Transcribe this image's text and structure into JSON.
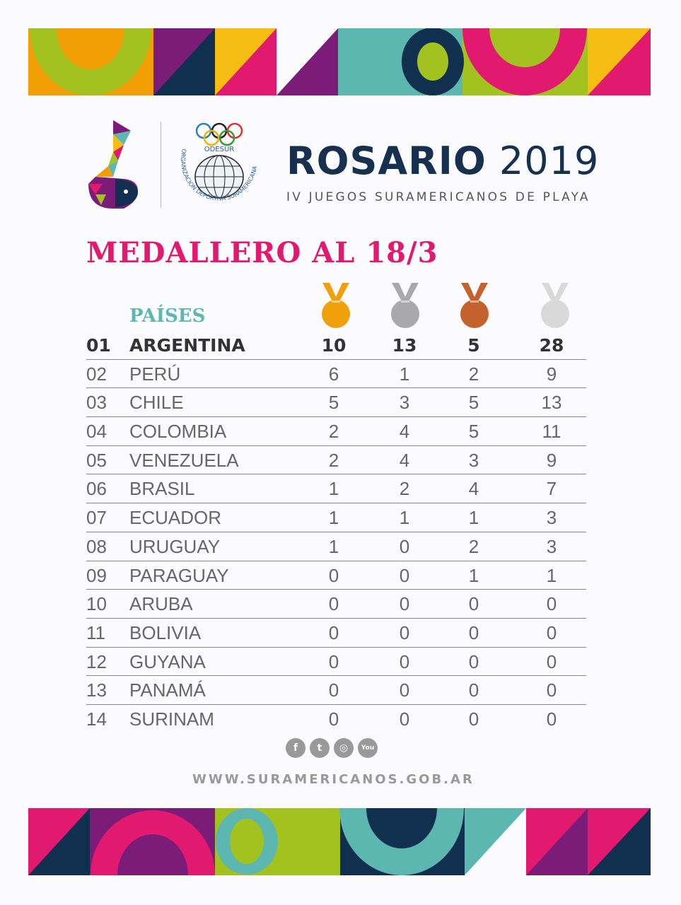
{
  "header": {
    "title_bold": "ROSARIO",
    "title_year": "2019",
    "subtitle": "IV JUEGOS SURAMERICANOS DE PLAYA",
    "odesur_logo_text": "ODESUR",
    "odesur_ring_text": "ORGANIZACION DEPORTIVA SURAMERICANA"
  },
  "heading": "MEDALLERO AL 18/3",
  "table": {
    "country_header": "PAÍSES",
    "medal_columns": [
      "gold-medal",
      "silver-medal",
      "bronze-medal",
      "total-medal"
    ],
    "colors": {
      "gold": "#f0a00a",
      "silver": "#a9a9ab",
      "bronze": "#c4622d",
      "total": "#d9d9da"
    },
    "rows": [
      {
        "rank": "01",
        "country": "ARGENTINA",
        "gold": "10",
        "silver": "13",
        "bronze": "5",
        "total": "28"
      },
      {
        "rank": "02",
        "country": "PERÚ",
        "gold": "6",
        "silver": "1",
        "bronze": "2",
        "total": "9"
      },
      {
        "rank": "03",
        "country": "CHILE",
        "gold": "5",
        "silver": "3",
        "bronze": "5",
        "total": "13"
      },
      {
        "rank": "04",
        "country": "COLOMBIA",
        "gold": "2",
        "silver": "4",
        "bronze": "5",
        "total": "11"
      },
      {
        "rank": "05",
        "country": "VENEZUELA",
        "gold": "2",
        "silver": "4",
        "bronze": "3",
        "total": "9"
      },
      {
        "rank": "06",
        "country": "BRASIL",
        "gold": "1",
        "silver": "2",
        "bronze": "4",
        "total": "7"
      },
      {
        "rank": "07",
        "country": "ECUADOR",
        "gold": "1",
        "silver": "1",
        "bronze": "1",
        "total": "3"
      },
      {
        "rank": "08",
        "country": "URUGUAY",
        "gold": "1",
        "silver": "0",
        "bronze": "2",
        "total": "3"
      },
      {
        "rank": "09",
        "country": "PARAGUAY",
        "gold": "0",
        "silver": "0",
        "bronze": "1",
        "total": "1"
      },
      {
        "rank": "10",
        "country": "ARUBA",
        "gold": "0",
        "silver": "0",
        "bronze": "0",
        "total": "0"
      },
      {
        "rank": "11",
        "country": "BOLIVIA",
        "gold": "0",
        "silver": "0",
        "bronze": "0",
        "total": "0"
      },
      {
        "rank": "12",
        "country": "GUYANA",
        "gold": "0",
        "silver": "0",
        "bronze": "0",
        "total": "0"
      },
      {
        "rank": "13",
        "country": "PANAMÁ",
        "gold": "0",
        "silver": "0",
        "bronze": "0",
        "total": "0"
      },
      {
        "rank": "14",
        "country": "SURINAM",
        "gold": "0",
        "silver": "0",
        "bronze": "0",
        "total": "0"
      }
    ]
  },
  "social": [
    {
      "name": "facebook-icon",
      "glyph": "f"
    },
    {
      "name": "twitter-icon",
      "glyph": "t"
    },
    {
      "name": "instagram-icon",
      "glyph": "◎"
    },
    {
      "name": "youtube-icon",
      "glyph": "You"
    }
  ],
  "footer_url": "WWW.SURAMERICANOS.GOB.AR"
}
